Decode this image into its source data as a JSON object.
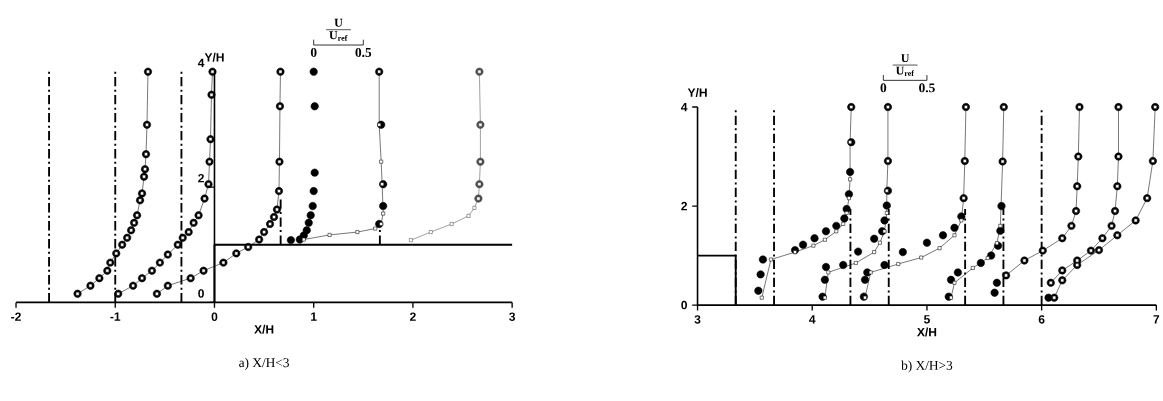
{
  "chart_data": [
    {
      "type": "scatter",
      "title": "a) X/H<3",
      "xlabel": "X/H",
      "ylabel": "Y/H",
      "xlim": [
        -2,
        3
      ],
      "ylim": [
        0,
        4
      ],
      "xticks": [
        -2,
        -1,
        0,
        1,
        2,
        3
      ],
      "yticks": [
        0,
        2,
        4
      ],
      "annotations": [
        "U",
        "U$_{ref}$",
        "0",
        "0.5"
      ],
      "ref_lines": [
        {
          "axis": "x",
          "value": -1.667,
          "line_style": "dashed"
        },
        {
          "axis": "x",
          "value": -1,
          "line_style": "dashed"
        },
        {
          "axis": "x",
          "value": -0.333,
          "line_style": "dashed"
        }
      ],
      "series": [
        {
          "marker": "circle",
          "color": "#000000",
          "x": [
            -1.38,
            -1.25,
            -1.16,
            -1.08,
            -1.05,
            -0.99,
            -0.93,
            -0.88,
            -0.84,
            -0.81,
            -0.78,
            -0.75,
            -0.73,
            -0.71,
            -0.7,
            -0.69,
            -0.68,
            -0.67,
            null,
            -0.97,
            -0.82,
            -0.73,
            -0.63,
            -0.55,
            -0.47,
            -0.37,
            -0.32,
            -0.26,
            -0.21,
            -0.16,
            -0.1,
            -0.06,
            -0.05,
            -0.04,
            -0.03,
            -0.02,
            null,
            -0.58,
            -0.47,
            -0.24,
            -0.11,
            0.09,
            0.22,
            0.34,
            0.45,
            0.5,
            0.56,
            0.6,
            0.63,
            0.65,
            0.655,
            0.66,
            0.665,
            null,
            0.77,
            0.86,
            0.9,
            0.93,
            0.95,
            0.97,
            0.99,
            1.0,
            1.01,
            1.01,
            1.0,
            null,
            1.66,
            1.7,
            1.7,
            1.68,
            1.66
          ],
          "values": [
            0.15,
            0.29,
            0.42,
            0.55,
            0.69,
            0.85,
            1.0,
            1.12,
            1.25,
            1.38,
            1.51,
            1.77,
            1.89,
            2.18,
            2.31,
            2.57,
            3.08,
            4.0,
            null,
            0.15,
            0.29,
            0.42,
            0.55,
            0.69,
            0.83,
            1.0,
            1.12,
            1.22,
            1.38,
            1.51,
            1.8,
            2.05,
            2.44,
            2.83,
            3.6,
            4.0,
            null,
            0.15,
            0.29,
            0.42,
            0.55,
            0.69,
            0.85,
            0.96,
            1.09,
            1.22,
            1.36,
            1.48,
            1.61,
            1.93,
            2.44,
            3.4,
            4.0,
            null,
            1.08,
            1.09,
            1.16,
            1.25,
            1.38,
            1.51,
            1.67,
            1.93,
            2.25,
            3.4,
            4.0,
            null,
            1.36,
            1.67,
            2.05,
            3.08,
            4.0
          ]
        },
        {
          "type": "line",
          "marker": "square",
          "color": "#000000",
          "x": [
            -1.38,
            -1.25,
            -1.16,
            -1.08,
            -1.05,
            -0.99,
            -0.93,
            -0.88,
            -0.84,
            -0.81,
            -0.78,
            -0.75,
            -0.73,
            -0.71,
            -0.7,
            -0.69,
            -0.68,
            -0.67,
            null,
            -0.97,
            -0.82,
            -0.73,
            -0.63,
            -0.55,
            -0.47,
            -0.37,
            -0.32,
            -0.26,
            -0.21,
            -0.16,
            -0.1,
            -0.06,
            -0.05,
            -0.04,
            -0.03,
            -0.02,
            null,
            -0.58,
            -0.47,
            -0.24,
            -0.11,
            0.09,
            0.22,
            0.34,
            0.45,
            0.5,
            0.56,
            0.6,
            0.63,
            0.65,
            0.655,
            0.66,
            0.665,
            null,
            0.9,
            1.16,
            1.44,
            1.62,
            1.68,
            1.7,
            1.69,
            1.68,
            1.66,
            1.66
          ],
          "values": [
            0.15,
            0.29,
            0.42,
            0.55,
            0.69,
            0.85,
            1.0,
            1.12,
            1.25,
            1.38,
            1.51,
            1.77,
            1.89,
            2.18,
            2.31,
            2.57,
            3.08,
            4.0,
            null,
            0.15,
            0.29,
            0.42,
            0.55,
            0.69,
            0.83,
            1.0,
            1.12,
            1.22,
            1.38,
            1.51,
            1.8,
            2.05,
            2.44,
            2.83,
            3.6,
            4.0,
            null,
            0.15,
            0.29,
            0.42,
            0.55,
            0.69,
            0.85,
            0.96,
            1.09,
            1.22,
            1.36,
            1.48,
            1.61,
            1.93,
            2.44,
            3.4,
            4.0,
            null,
            1.09,
            1.17,
            1.22,
            1.28,
            1.36,
            1.54,
            2.05,
            2.44,
            3.08,
            4.0
          ]
        },
        {
          "type": "line",
          "marker": "square",
          "color": "#4d4d4d",
          "x": [
            1.98,
            2.18,
            2.39,
            2.56,
            2.62,
            2.66,
            2.67,
            2.68,
            2.68,
            2.67
          ],
          "values": [
            1.08,
            1.22,
            1.36,
            1.5,
            1.64,
            1.8,
            2.05,
            2.44,
            3.08,
            4.0
          ]
        },
        {
          "marker": "circle",
          "color": "#4d4d4d",
          "x": [
            2.66,
            2.67,
            2.68,
            2.68,
            2.67
          ],
          "values": [
            1.8,
            2.05,
            2.44,
            3.08,
            4.0
          ]
        },
        {
          "type": "line",
          "marker": "none",
          "color": "#000000",
          "x": [
            0,
            0,
            3
          ],
          "values": [
            0,
            1,
            1
          ]
        },
        {
          "type": "line",
          "marker": "none",
          "line_style": "dashed",
          "color": "#000000",
          "x": [
            0.667,
            0.667,
            null,
            1.667,
            1.667
          ],
          "values": [
            1,
            1.8,
            null,
            1,
            1.3
          ]
        }
      ]
    },
    {
      "type": "scatter",
      "title": "b) X/H>3",
      "xlabel": "X/H",
      "ylabel": "Y/H",
      "xlim": [
        3,
        7
      ],
      "ylim": [
        0,
        4
      ],
      "xticks": [
        3,
        4,
        5,
        6,
        7
      ],
      "yticks": [
        0,
        2,
        4
      ],
      "annotations": [
        "U",
        "U$_{ref}$",
        "0",
        "0.5"
      ],
      "ref_lines": [
        {
          "axis": "x",
          "value": 3.333,
          "line_style": "dashed"
        },
        {
          "axis": "x",
          "value": 3.667,
          "line_style": "dashed"
        },
        {
          "axis": "x",
          "value": 6,
          "line_style": "dashed"
        }
      ],
      "series": [
        {
          "marker": "circle",
          "color": "#000000",
          "x": [
            3.53,
            3.55,
            3.57,
            3.85,
            3.92,
            4.02,
            4.12,
            4.21,
            4.28,
            4.3,
            4.32,
            4.33,
            4.34,
            4.34,
            null,
            4.09,
            4.11,
            4.12,
            4.27,
            4.4,
            4.54,
            4.61,
            4.63,
            4.65,
            4.66,
            4.66,
            4.66,
            null,
            4.45,
            4.46,
            4.48,
            4.63,
            4.79,
            5.0,
            5.14,
            5.24,
            5.3,
            5.32,
            5.33,
            5.34,
            null,
            5.19,
            5.21,
            5.27,
            5.47,
            5.56,
            5.62,
            5.64,
            5.65,
            5.66,
            5.67,
            null,
            5.59,
            5.61,
            5.69,
            5.85,
            6.01,
            6.18,
            6.26,
            6.3,
            6.31,
            6.32,
            6.33,
            null,
            6.06,
            6.08,
            6.18,
            6.31,
            6.43,
            6.53,
            6.61,
            6.64,
            6.66,
            6.67,
            6.67,
            null,
            6.11,
            6.18,
            6.31,
            6.5,
            6.66,
            6.82,
            6.92,
            6.97,
            6.99
          ],
          "values": [
            0.29,
            0.62,
            0.92,
            1.11,
            1.22,
            1.35,
            1.49,
            1.6,
            1.75,
            1.94,
            2.24,
            2.69,
            3.29,
            4.0,
            null,
            0.17,
            0.51,
            0.77,
            0.81,
            1.08,
            1.34,
            1.49,
            1.71,
            2.01,
            2.31,
            2.91,
            4.0,
            null,
            0.17,
            0.51,
            0.66,
            0.81,
            1.07,
            1.26,
            1.41,
            1.56,
            1.79,
            2.16,
            2.91,
            4.0,
            null,
            0.17,
            0.51,
            0.66,
            0.85,
            1.0,
            1.2,
            1.5,
            2.0,
            2.9,
            4.0,
            null,
            0.25,
            0.45,
            0.6,
            0.9,
            1.1,
            1.35,
            1.6,
            1.9,
            2.4,
            3.0,
            4.0,
            null,
            0.15,
            0.45,
            0.7,
            0.9,
            1.1,
            1.35,
            1.6,
            1.9,
            2.4,
            3.0,
            4.0,
            null,
            0.15,
            0.5,
            0.81,
            1.11,
            1.41,
            1.71,
            2.16,
            2.91,
            4.0
          ]
        },
        {
          "type": "line",
          "marker": "square",
          "color": "#000000",
          "x": [
            3.56,
            3.64,
            3.85,
            4.01,
            4.11,
            4.21,
            4.27,
            4.3,
            4.32,
            4.33,
            4.33,
            4.34,
            null,
            4.11,
            4.14,
            4.38,
            4.54,
            4.59,
            4.63,
            4.65,
            4.65,
            4.66,
            4.66,
            null,
            4.46,
            4.51,
            4.75,
            4.95,
            5.11,
            5.24,
            5.3,
            5.32,
            5.33,
            5.34,
            null,
            5.21,
            5.24,
            5.4,
            5.53,
            5.61,
            5.64,
            5.66,
            5.67,
            null,
            5.69,
            5.85,
            6.01,
            6.18,
            6.26,
            6.3,
            6.31,
            6.32,
            6.33,
            null,
            6.08,
            6.18,
            6.31,
            6.43,
            6.53,
            6.61,
            6.64,
            6.66,
            6.67,
            6.67,
            null,
            6.11,
            6.18,
            6.31,
            6.5,
            6.66,
            6.82,
            6.92,
            6.97,
            6.99
          ],
          "values": [
            0.15,
            0.92,
            1.07,
            1.2,
            1.32,
            1.49,
            1.64,
            1.86,
            2.16,
            2.54,
            3.29,
            4.0,
            null,
            0.15,
            0.66,
            0.85,
            1.07,
            1.26,
            1.49,
            1.86,
            2.31,
            2.91,
            4.0,
            null,
            0.15,
            0.66,
            0.83,
            0.96,
            1.15,
            1.41,
            1.71,
            2.16,
            2.91,
            4.0,
            null,
            0.15,
            0.45,
            0.75,
            0.95,
            1.25,
            1.6,
            2.9,
            4.0,
            null,
            0.6,
            0.9,
            1.1,
            1.35,
            1.6,
            1.9,
            2.4,
            3.0,
            4.0,
            null,
            0.45,
            0.7,
            0.9,
            1.1,
            1.35,
            1.6,
            1.9,
            2.4,
            3.0,
            4.0,
            null,
            0.15,
            0.5,
            0.81,
            1.11,
            1.41,
            1.71,
            2.16,
            2.91,
            4.0
          ]
        },
        {
          "type": "line",
          "marker": "none",
          "color": "#000000",
          "x": [
            3,
            3.333,
            3.333
          ],
          "values": [
            1,
            1,
            0
          ]
        },
        {
          "type": "line",
          "marker": "none",
          "line_style": "dashed",
          "color": "#000000",
          "x": [
            4.333,
            4.333,
            null,
            4.667,
            4.667,
            null,
            5.333,
            5.333,
            null,
            5.667,
            5.667
          ],
          "values": [
            0,
            1.94,
            null,
            0,
            1.94,
            null,
            0,
            1.94,
            null,
            0,
            1.94
          ]
        }
      ]
    }
  ]
}
